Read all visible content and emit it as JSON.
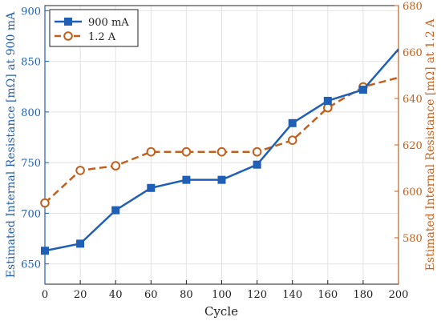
{
  "chart_data": {
    "type": "line",
    "xlabel": "Cycle",
    "ylabel_left": "Estimated Internal Resistance [mΩ] at 900 mA",
    "ylabel_right": "Estimated Internal Resistance [mΩ] at 1.2 A",
    "xlim": [
      0,
      200
    ],
    "ylim_left": [
      630,
      905
    ],
    "ylim_right": [
      560,
      680
    ],
    "xticks": [
      0,
      20,
      40,
      60,
      80,
      100,
      120,
      140,
      160,
      180,
      200
    ],
    "yticks_left": [
      650,
      700,
      750,
      800,
      850,
      900
    ],
    "yticks_right": [
      580,
      600,
      620,
      640,
      660,
      680
    ],
    "grid": true,
    "legend_position": "top-left",
    "series": [
      {
        "name": "900 mA",
        "axis": "left",
        "color": "#1f5fb5",
        "marker": "square",
        "line_style": "solid",
        "x": [
          0,
          20,
          40,
          60,
          80,
          100,
          120,
          140,
          160,
          180,
          200
        ],
        "y": [
          663,
          670,
          703,
          725,
          733,
          733,
          748,
          789,
          811,
          822,
          862
        ]
      },
      {
        "name": "1.2 A",
        "axis": "right",
        "color": "#c0601e",
        "marker": "circle",
        "line_style": "dashed",
        "x": [
          0,
          20,
          40,
          60,
          80,
          100,
          120,
          140,
          160,
          180
        ],
        "y": [
          595,
          609,
          611,
          617,
          617,
          617,
          617,
          622,
          636,
          645
        ]
      }
    ],
    "series_end": {
      "x": 200,
      "y": 649
    }
  }
}
